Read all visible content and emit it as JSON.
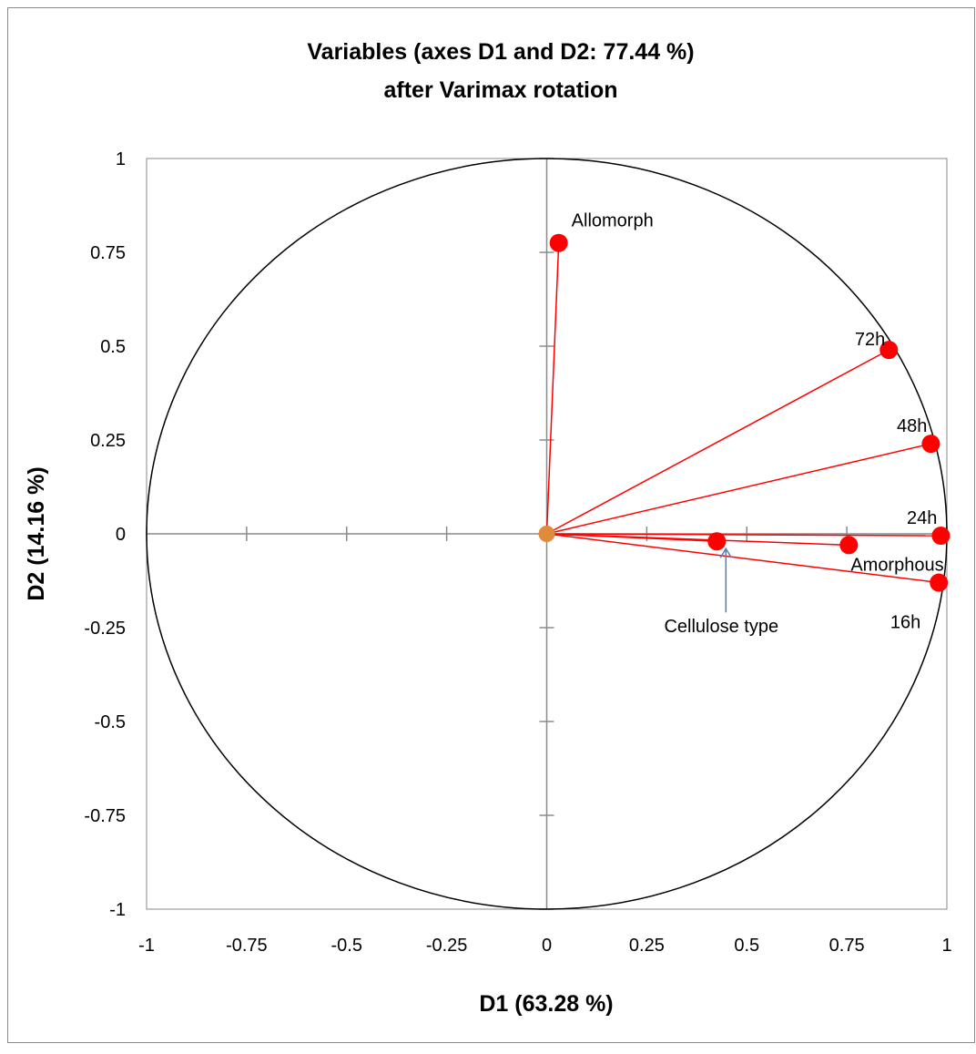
{
  "chart_data": {
    "type": "scatter",
    "title_line1": "Variables (axes D1 and D2: 77.44 %)",
    "title_line2": "after Varimax rotation",
    "xlabel": "D1 (63.28 %)",
    "ylabel": "D2 (14.16 %)",
    "xlim": [
      -1,
      1
    ],
    "ylim": [
      -1,
      1
    ],
    "x_ticks": [
      "-1",
      "-0.75",
      "-0.5",
      "-0.25",
      "0",
      "0.25",
      "0.5",
      "0.75",
      "1"
    ],
    "y_ticks": [
      "1",
      "0.75",
      "0.5",
      "0.25",
      "0",
      "-0.25",
      "-0.5",
      "-0.75",
      "-1"
    ],
    "unit_circle": true,
    "grid": false,
    "origin_point": {
      "x": 0,
      "y": 0,
      "color": "#e08a3c"
    },
    "vector_color": "#ff0000",
    "point_color": "#ff0000",
    "annotation_arrow_color": "#4f7fc0",
    "points": [
      {
        "label": "Allomorph",
        "x": 0.03,
        "y": 0.775,
        "label_pos": "above-right"
      },
      {
        "label": "72h",
        "x": 0.855,
        "y": 0.49,
        "label_pos": "left"
      },
      {
        "label": "48h",
        "x": 0.96,
        "y": 0.24,
        "label_pos": "above-left"
      },
      {
        "label": "24h",
        "x": 0.985,
        "y": -0.005,
        "label_pos": "above-left"
      },
      {
        "label": "Amorphous",
        "x": 0.755,
        "y": -0.03,
        "label_pos": "below-right"
      },
      {
        "label": "16h",
        "x": 0.98,
        "y": -0.13,
        "label_pos": "below-left"
      },
      {
        "label": "Cellulose type",
        "x": 0.425,
        "y": -0.02,
        "label_pos": "arrow-below"
      }
    ]
  }
}
